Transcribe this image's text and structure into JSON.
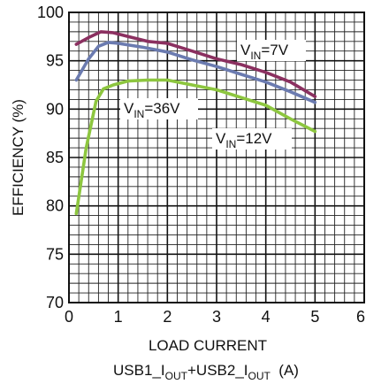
{
  "chart_data": {
    "type": "line",
    "xlabel": "LOAD CURRENT",
    "xlabel2": "USB1_IOUT+USB2_IOUT  (A)",
    "ylabel": "EFFICIENCY (%)",
    "xlim": [
      0,
      6
    ],
    "ylim": [
      70,
      100
    ],
    "x_ticks": [
      "0",
      "1",
      "2",
      "3",
      "4",
      "5",
      "6"
    ],
    "y_ticks": [
      "70",
      "75",
      "80",
      "85",
      "90",
      "95",
      "100"
    ],
    "grid": true,
    "series": [
      {
        "name": "VIN=7V",
        "color": "#8b3060",
        "points": [
          [
            0.15,
            96.7
          ],
          [
            0.4,
            97.4
          ],
          [
            0.65,
            98.0
          ],
          [
            0.9,
            97.9
          ],
          [
            1.2,
            97.5
          ],
          [
            1.6,
            97.0
          ],
          [
            2.0,
            96.8
          ],
          [
            2.5,
            96.0
          ],
          [
            3.0,
            95.2
          ],
          [
            3.5,
            94.6
          ],
          [
            4.0,
            93.8
          ],
          [
            4.5,
            92.8
          ],
          [
            5.0,
            91.3
          ]
        ]
      },
      {
        "name": "VIN=12V",
        "color": "#6b7bb0",
        "points": [
          [
            0.15,
            93.0
          ],
          [
            0.4,
            95.2
          ],
          [
            0.6,
            96.5
          ],
          [
            0.8,
            96.9
          ],
          [
            1.0,
            96.8
          ],
          [
            1.5,
            96.4
          ],
          [
            2.0,
            95.9
          ],
          [
            2.5,
            95.1
          ],
          [
            3.0,
            94.4
          ],
          [
            3.5,
            93.6
          ],
          [
            4.0,
            92.8
          ],
          [
            4.5,
            91.8
          ],
          [
            5.0,
            90.7
          ]
        ]
      },
      {
        "name": "VIN=36V",
        "color": "#8dc63f",
        "points": [
          [
            0.15,
            79.2
          ],
          [
            0.35,
            86.0
          ],
          [
            0.55,
            90.8
          ],
          [
            0.7,
            92.1
          ],
          [
            0.9,
            92.5
          ],
          [
            1.2,
            92.9
          ],
          [
            1.6,
            93.0
          ],
          [
            2.0,
            93.0
          ],
          [
            2.5,
            92.5
          ],
          [
            3.0,
            92.0
          ],
          [
            3.5,
            91.2
          ],
          [
            4.0,
            90.4
          ],
          [
            4.5,
            89.0
          ],
          [
            5.0,
            87.7
          ]
        ]
      }
    ],
    "annotations": [
      {
        "main": "V",
        "sub": "IN",
        "rest": "=7V"
      },
      {
        "main": "V",
        "sub": "IN",
        "rest": "=36V"
      },
      {
        "main": "V",
        "sub": "IN",
        "rest": "=12V"
      }
    ]
  }
}
